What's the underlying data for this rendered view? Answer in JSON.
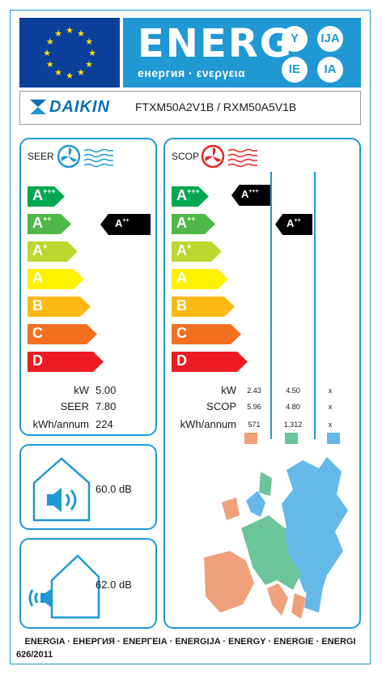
{
  "header": {
    "energy_word": "ENERG",
    "energy_sub": "енергия · ενεργεια",
    "lang_badges": [
      "Y",
      "IJA",
      "IE",
      "IA"
    ]
  },
  "supplier": {
    "brand": "DAIKIN",
    "model": "FTXM50A2V1B / RXM50A5V1B"
  },
  "seer": {
    "label": "SEER",
    "classes": [
      "A",
      "A",
      "A",
      "A",
      "B",
      "C",
      "D"
    ],
    "class_sups": [
      "+++",
      "++",
      "+",
      "",
      "",
      "",
      ""
    ],
    "rating": "A",
    "rating_sup": "++",
    "rows": [
      {
        "label": "kW",
        "value": "5.00"
      },
      {
        "label": "SEER",
        "value": "7.80"
      },
      {
        "label": "kWh/annum",
        "value": "224"
      }
    ]
  },
  "scop": {
    "label": "SCOP",
    "classes": [
      "A",
      "A",
      "A",
      "A",
      "B",
      "C",
      "D"
    ],
    "class_sups": [
      "+++",
      "++",
      "+",
      "",
      "",
      "",
      ""
    ],
    "ratings": [
      {
        "letter": "A",
        "sup": "+++"
      },
      {
        "letter": "A",
        "sup": "++"
      }
    ],
    "row_labels": [
      "kW",
      "SCOP",
      "kWh/annum"
    ],
    "columns": [
      {
        "color": "#f0a07a",
        "values": [
          "2.43",
          "5.96",
          "571"
        ]
      },
      {
        "color": "#6cc49a",
        "values": [
          "4.50",
          "4.80",
          "1,312"
        ]
      },
      {
        "color": "#64b9e8",
        "values": [
          "x",
          "x",
          "x"
        ]
      }
    ]
  },
  "noise_indoor": {
    "value": "60.0",
    "unit": "dB"
  },
  "noise_outdoor": {
    "value": "62.0",
    "unit": "dB"
  },
  "colors": {
    "blue": "#1f98d4",
    "eu_blue": "#0b3f9a",
    "star": "#ffe000",
    "class_colors": [
      "#00a651",
      "#50b848",
      "#bed630",
      "#fff200",
      "#fdb913",
      "#f37021",
      "#ed1c24"
    ]
  },
  "footer": {
    "languages": "ENERGIA · ЕНЕРГИЯ · ΕΝΕΡΓΕΙΑ · ENERGIJA · ENERGY · ENERGIE · ENERGI",
    "regulation": "626/2011"
  }
}
